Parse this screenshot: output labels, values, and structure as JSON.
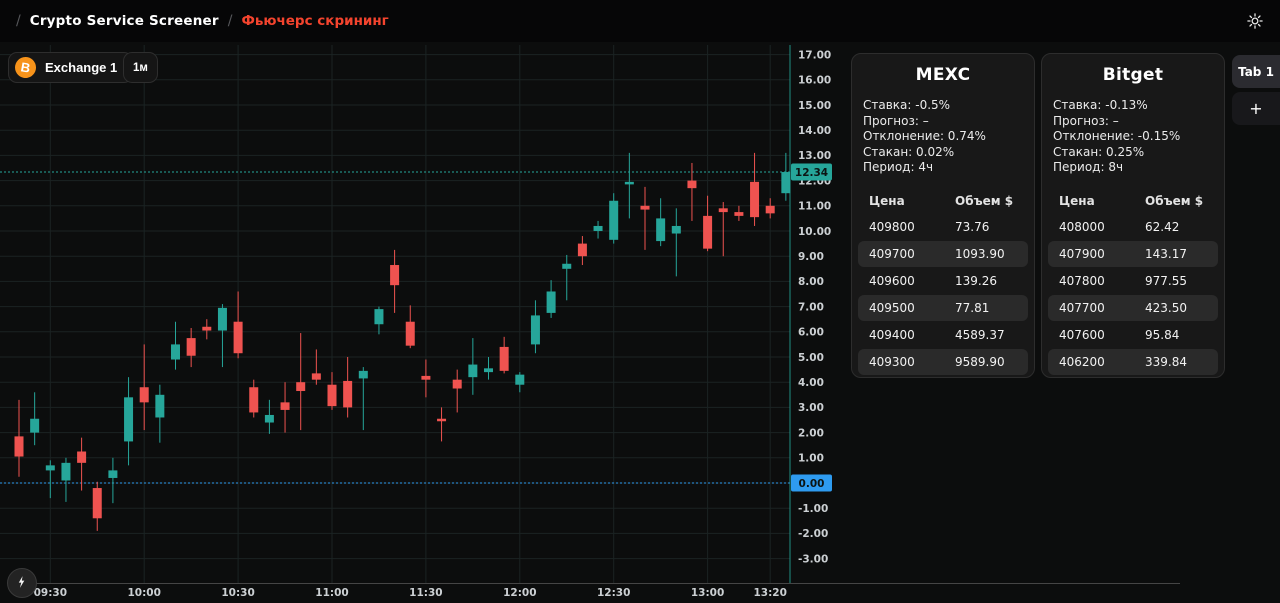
{
  "colors": {
    "accent": "#f4442e",
    "up": "#26a69a",
    "down": "#ef5350",
    "zero_line": "#2e9bf0",
    "grid": "#1b2323"
  },
  "breadcrumb": {
    "sep": "/",
    "items": [
      {
        "label": "Crypto Service Screener"
      },
      {
        "label": "Фьючерс скрининг"
      }
    ]
  },
  "topbar": {
    "theme_icon": "sun-icon"
  },
  "toolbar": {
    "exchange_label": "Exchange 1",
    "timeframe_label": "1м",
    "bitcoin_icon_letter": "B"
  },
  "tabs": {
    "active_label": "Tab 1",
    "add_label": "+"
  },
  "chart_data": {
    "type": "candlestick",
    "ylim": [
      -3.6,
      17.4
    ],
    "grid": true,
    "y_ticks": [
      17,
      16,
      15,
      14,
      13,
      12,
      11,
      10,
      9,
      8,
      7,
      6,
      5,
      4,
      3,
      2,
      1,
      0,
      -1,
      -2,
      -3
    ],
    "x_ticks": [
      {
        "label": "09:30",
        "i": 2
      },
      {
        "label": "10:00",
        "i": 8
      },
      {
        "label": "10:30",
        "i": 14
      },
      {
        "label": "11:00",
        "i": 20
      },
      {
        "label": "11:30",
        "i": 26
      },
      {
        "label": "12:00",
        "i": 32
      },
      {
        "label": "12:30",
        "i": 38
      },
      {
        "label": "13:00",
        "i": 44
      },
      {
        "label": "13:20",
        "i": 48
      }
    ],
    "current_price": {
      "value": 12.34,
      "label": "12.34"
    },
    "zero_line": {
      "value": 0,
      "label": "0.00"
    },
    "colors": {
      "up": "#26a69a",
      "down": "#ef5350",
      "grid": "#1b2323",
      "zero": "#2e9bf0",
      "price": "#26a69a"
    },
    "candles": [
      [
        1.85,
        3.3,
        0.25,
        1.05
      ],
      [
        2.0,
        3.6,
        1.5,
        2.55
      ],
      [
        0.5,
        0.9,
        -0.6,
        0.7
      ],
      [
        0.1,
        1.0,
        -0.75,
        0.8
      ],
      [
        1.25,
        1.8,
        -0.3,
        0.8
      ],
      [
        -0.2,
        0.05,
        -1.9,
        -1.4
      ],
      [
        0.2,
        1.0,
        -0.8,
        0.5
      ],
      [
        1.65,
        4.2,
        0.7,
        3.4
      ],
      [
        3.8,
        5.5,
        2.1,
        3.2
      ],
      [
        2.6,
        3.9,
        1.6,
        3.5
      ],
      [
        4.9,
        6.4,
        4.5,
        5.5
      ],
      [
        5.75,
        6.15,
        4.6,
        5.05
      ],
      [
        6.2,
        6.5,
        5.7,
        6.05
      ],
      [
        6.05,
        7.1,
        4.6,
        6.95
      ],
      [
        6.4,
        7.6,
        4.95,
        5.15
      ],
      [
        3.8,
        4.1,
        2.6,
        2.8
      ],
      [
        2.4,
        3.3,
        1.95,
        2.7
      ],
      [
        3.2,
        4.0,
        2.0,
        2.9
      ],
      [
        4.0,
        5.95,
        2.1,
        3.65
      ],
      [
        4.35,
        5.3,
        3.9,
        4.1
      ],
      [
        3.9,
        4.4,
        2.9,
        3.05
      ],
      [
        4.05,
        5.0,
        2.6,
        3.0
      ],
      [
        4.15,
        4.6,
        2.1,
        4.45
      ],
      [
        6.3,
        7.0,
        5.9,
        6.9
      ],
      [
        8.65,
        9.25,
        6.75,
        7.85
      ],
      [
        6.4,
        7.05,
        5.35,
        5.45
      ],
      [
        4.25,
        4.9,
        3.4,
        4.1
      ],
      [
        2.55,
        3.0,
        1.65,
        2.45
      ],
      [
        4.1,
        4.5,
        2.8,
        3.75
      ],
      [
        4.2,
        5.75,
        3.5,
        4.7
      ],
      [
        4.4,
        5.0,
        4.1,
        4.55
      ],
      [
        5.4,
        5.8,
        4.35,
        4.45
      ],
      [
        3.9,
        4.4,
        3.6,
        4.3
      ],
      [
        5.5,
        7.25,
        5.15,
        6.65
      ],
      [
        6.75,
        8.05,
        6.55,
        7.6
      ],
      [
        8.5,
        9.05,
        7.25,
        8.7
      ],
      [
        9.5,
        9.8,
        8.65,
        9.0
      ],
      [
        10.0,
        10.4,
        9.7,
        10.2
      ],
      [
        9.65,
        11.5,
        9.5,
        11.2
      ],
      [
        11.85,
        13.1,
        10.5,
        11.95
      ],
      [
        11.0,
        11.75,
        9.25,
        10.85
      ],
      [
        9.6,
        11.3,
        9.4,
        10.5
      ],
      [
        9.9,
        10.9,
        8.2,
        10.2
      ],
      [
        12.0,
        12.7,
        10.4,
        11.7
      ],
      [
        10.6,
        11.4,
        9.2,
        9.3
      ],
      [
        10.9,
        11.15,
        9.0,
        10.75
      ],
      [
        10.75,
        11.0,
        10.4,
        10.6
      ],
      [
        11.95,
        13.1,
        10.2,
        10.55
      ],
      [
        11.0,
        11.3,
        10.5,
        10.7
      ],
      [
        11.5,
        13.1,
        11.2,
        12.34
      ]
    ]
  },
  "exchanges": [
    {
      "title": "MEXC",
      "stats": [
        {
          "label": "Ставка",
          "value": "-0.5%"
        },
        {
          "label": "Прогноз",
          "value": "–"
        },
        {
          "label": "Отклонение",
          "value": "0.74%"
        },
        {
          "label": "Стакан",
          "value": "0.02%"
        },
        {
          "label": "Период",
          "value": "4ч"
        }
      ],
      "table": {
        "headers": [
          "Цена",
          "Объем $"
        ],
        "rows": [
          [
            "409800",
            "73.76"
          ],
          [
            "409700",
            "1093.90"
          ],
          [
            "409600",
            "139.26"
          ],
          [
            "409500",
            "77.81"
          ],
          [
            "409400",
            "4589.37"
          ],
          [
            "409300",
            "9589.90"
          ]
        ]
      }
    },
    {
      "title": "Bitget",
      "stats": [
        {
          "label": "Ставка",
          "value": "-0.13%"
        },
        {
          "label": "Прогноз",
          "value": "–"
        },
        {
          "label": "Отклонение",
          "value": "-0.15%"
        },
        {
          "label": "Стакан",
          "value": "0.25%"
        },
        {
          "label": "Период",
          "value": "8ч"
        }
      ],
      "table": {
        "headers": [
          "Цена",
          "Объем $"
        ],
        "rows": [
          [
            "408000",
            "62.42"
          ],
          [
            "407900",
            "143.17"
          ],
          [
            "407800",
            "977.55"
          ],
          [
            "407700",
            "423.50"
          ],
          [
            "407600",
            "95.84"
          ],
          [
            "406200",
            "339.84"
          ]
        ]
      }
    }
  ]
}
